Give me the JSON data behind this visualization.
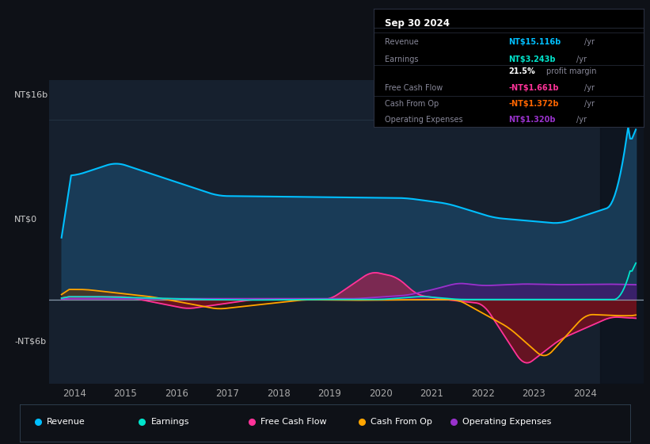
{
  "bg_color": "#0e1117",
  "plot_bg_color": "#16202e",
  "title": "Sep 30 2024",
  "revenue_color": "#00bfff",
  "earnings_color": "#00e5cc",
  "fcf_color": "#ff3399",
  "cashfromop_color": "#ffa500",
  "opex_color": "#9932cc",
  "revenue_fill": "#1a3f5c",
  "fcf_fill_pos": "#b03060",
  "fcf_fill_neg": "#6b1020",
  "cashop_fill_neg": "#4a2000",
  "opex_fill": "#4b1a7a",
  "legend_items": [
    {
      "label": "Revenue",
      "color": "#00bfff"
    },
    {
      "label": "Earnings",
      "color": "#00e5cc"
    },
    {
      "label": "Free Cash Flow",
      "color": "#ff3399"
    },
    {
      "label": "Cash From Op",
      "color": "#ffa500"
    },
    {
      "label": "Operating Expenses",
      "color": "#9932cc"
    }
  ],
  "info_rows": [
    {
      "label": "Revenue",
      "value": "NT$15.116b",
      "suffix": " /yr",
      "vcolor": "#00bfff"
    },
    {
      "label": "Earnings",
      "value": "NT$3.243b",
      "suffix": " /yr",
      "vcolor": "#00e5cc"
    },
    {
      "label": "",
      "value": "21.5%",
      "suffix": " profit margin",
      "vcolor": "#ffffff"
    },
    {
      "label": "Free Cash Flow",
      "value": "-NT$1.661b",
      "suffix": " /yr",
      "vcolor": "#ff3399"
    },
    {
      "label": "Cash From Op",
      "value": "-NT$1.372b",
      "suffix": " /yr",
      "vcolor": "#ff6600"
    },
    {
      "label": "Operating Expenses",
      "value": "NT$1.320b",
      "suffix": " /yr",
      "vcolor": "#9932cc"
    }
  ]
}
